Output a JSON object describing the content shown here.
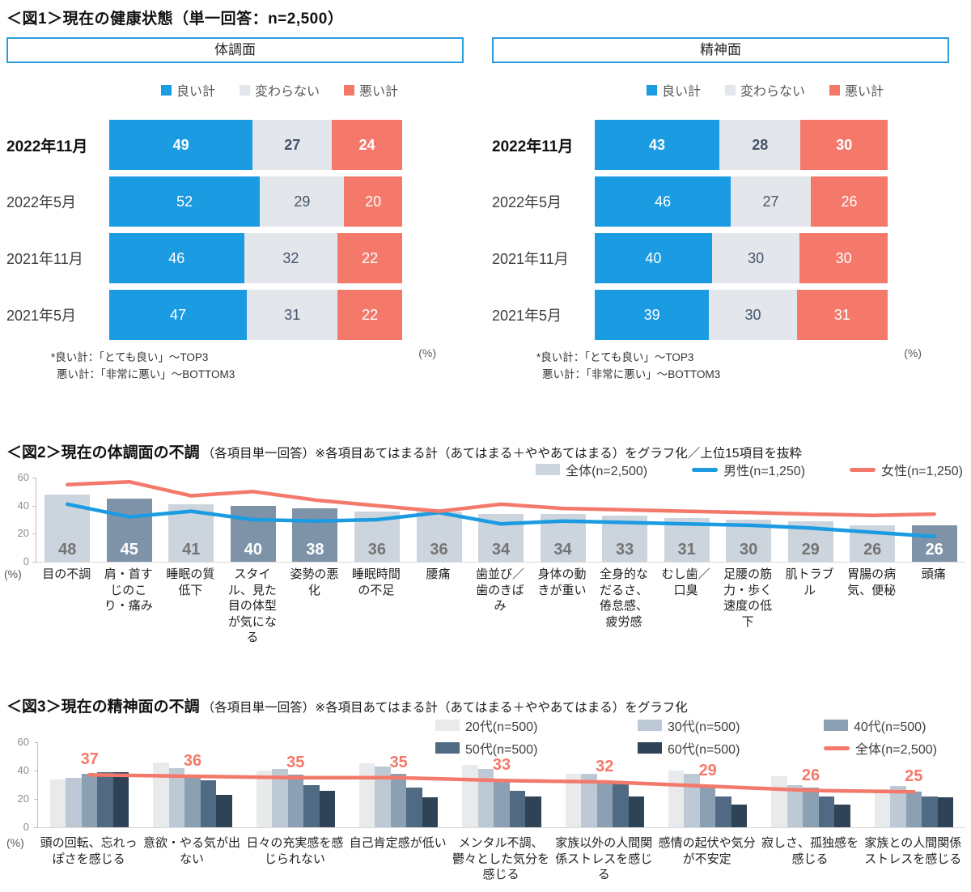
{
  "fig1": {
    "heading": "＜図1＞現在の健康状態（単一回答：n=2,500）",
    "footnote_good": "*良い計：「とても良い」～TOP3",
    "footnote_bad": "悪い計：「非常に悪い」～BOTTOM3"
  },
  "chart_data": [
    {
      "id": "fig1-physical",
      "type": "bar",
      "variant": "horizontal-stacked-100",
      "panel_title": "体調面",
      "unit_label": "(%)",
      "xlim": [
        0,
        100
      ],
      "categories": [
        "2022年11月",
        "2022年5月",
        "2021年11月",
        "2021年5月"
      ],
      "series": [
        {
          "name": "良い計",
          "color": "#1B9BE1",
          "values": [
            49,
            52,
            46,
            47
          ]
        },
        {
          "name": "変わらない",
          "color": "#E3E6EA",
          "values": [
            27,
            29,
            32,
            31
          ]
        },
        {
          "name": "悪い計",
          "color": "#F4796B",
          "values": [
            24,
            20,
            22,
            22
          ]
        }
      ],
      "value_text_colors": [
        "#FFFFFF",
        "#44546A",
        "#FFFFFF"
      ]
    },
    {
      "id": "fig1-mental",
      "type": "bar",
      "variant": "horizontal-stacked-100",
      "panel_title": "精神面",
      "unit_label": "(%)",
      "xlim": [
        0,
        100
      ],
      "categories": [
        "2022年11月",
        "2022年5月",
        "2021年11月",
        "2021年5月"
      ],
      "series": [
        {
          "name": "良い計",
          "color": "#1B9BE1",
          "values": [
            43,
            46,
            40,
            39
          ]
        },
        {
          "name": "変わらない",
          "color": "#E3E6EA",
          "values": [
            28,
            27,
            30,
            30
          ]
        },
        {
          "name": "悪い計",
          "color": "#F4796B",
          "values": [
            30,
            26,
            30,
            31
          ]
        }
      ],
      "value_text_colors": [
        "#FFFFFF",
        "#44546A",
        "#FFFFFF"
      ]
    },
    {
      "id": "fig2",
      "type": "bar",
      "variant": "bar-plus-lines",
      "title": "＜図2＞現在の体調面の不調",
      "subtitle": "（各項目単一回答）※各項目あてはまる計（あてはまる＋ややあてはまる）をグラフ化／上位15項目を抜粋",
      "unit_label": "(%)",
      "ylim": [
        0,
        60
      ],
      "yticks": [
        0,
        20,
        40,
        60
      ],
      "categories": [
        "目の不調",
        "肩・首すじのこり・痛み",
        "睡眠の質低下",
        "スタイル、見た目の体型が気になる",
        "姿勢の悪化",
        "睡眠時間の不足",
        "腰痛",
        "歯並び／歯のきばみ",
        "身体の動きが重い",
        "全身的なだるさ、倦怠感、疲労感",
        "むし歯／口臭",
        "足腰の筋力・歩く速度の低下",
        "肌トラブル",
        "胃腸の病気、便秘",
        "頭痛"
      ],
      "bars": {
        "name": "全体(n=2,500)",
        "values": [
          48,
          45,
          41,
          40,
          38,
          36,
          36,
          34,
          34,
          33,
          31,
          30,
          29,
          26,
          26
        ],
        "highlighted": [
          false,
          true,
          false,
          true,
          true,
          false,
          false,
          false,
          false,
          false,
          false,
          false,
          false,
          false,
          true
        ],
        "color": "#CCD5DD",
        "highlight_color": "#7E93A7",
        "value_color": "#747474",
        "highlight_value_color": "#FFFFFF"
      },
      "lines": [
        {
          "name": "男性(n=1,250)",
          "color": "#1B9BE1",
          "values": [
            41,
            32,
            36,
            30,
            29,
            30,
            35,
            27,
            29,
            28,
            27,
            26,
            24,
            21,
            18
          ]
        },
        {
          "name": "女性(n=1,250)",
          "color": "#F4796B",
          "values": [
            55,
            57,
            47,
            50,
            44,
            40,
            36,
            41,
            38,
            37,
            36,
            35,
            34,
            33,
            34
          ]
        }
      ]
    },
    {
      "id": "fig3",
      "type": "bar",
      "variant": "grouped-bar-plus-line",
      "title": "＜図3＞現在の精神面の不調",
      "subtitle": "（各項目単一回答）※各項目あてはまる計（あてはまる＋ややあてはまる）をグラフ化",
      "unit_label": "(%)",
      "ylim": [
        0,
        60
      ],
      "yticks": [
        0,
        20,
        40,
        60
      ],
      "categories": [
        "頭の回転、忘れっぽさを感じる",
        "意欲・やる気が出ない",
        "日々の充実感を感じられない",
        "自己肯定感が低い",
        "メンタル不調、鬱々とした気分を感じる",
        "家族以外の人間関係ストレスを感じる",
        "感情の起伏や気分が不安定",
        "寂しさ、孤独感を感じる",
        "家族との人間関係ストレスを感じる"
      ],
      "series": [
        {
          "name": "20代(n=500)",
          "color": "#E9EAEB",
          "values": [
            34,
            46,
            40,
            45,
            44,
            38,
            40,
            36,
            27
          ]
        },
        {
          "name": "30代(n=500)",
          "color": "#BDCAD5",
          "values": [
            35,
            42,
            41,
            43,
            41,
            38,
            38,
            30,
            29
          ]
        },
        {
          "name": "40代(n=500)",
          "color": "#8BA0B2",
          "values": [
            38,
            36,
            37,
            38,
            33,
            32,
            28,
            28,
            25
          ]
        },
        {
          "name": "50代(n=500)",
          "color": "#506A83",
          "values": [
            39,
            33,
            30,
            28,
            26,
            31,
            22,
            22,
            22
          ]
        },
        {
          "name": "60代(n=500)",
          "color": "#2E4356",
          "values": [
            39,
            23,
            26,
            21,
            22,
            22,
            16,
            16,
            21
          ]
        }
      ],
      "line": {
        "name": "全体(n=2,500)",
        "color": "#F4796B",
        "values": [
          37,
          36,
          35,
          35,
          33,
          32,
          29,
          26,
          25
        ],
        "show_value_labels": true
      }
    }
  ]
}
